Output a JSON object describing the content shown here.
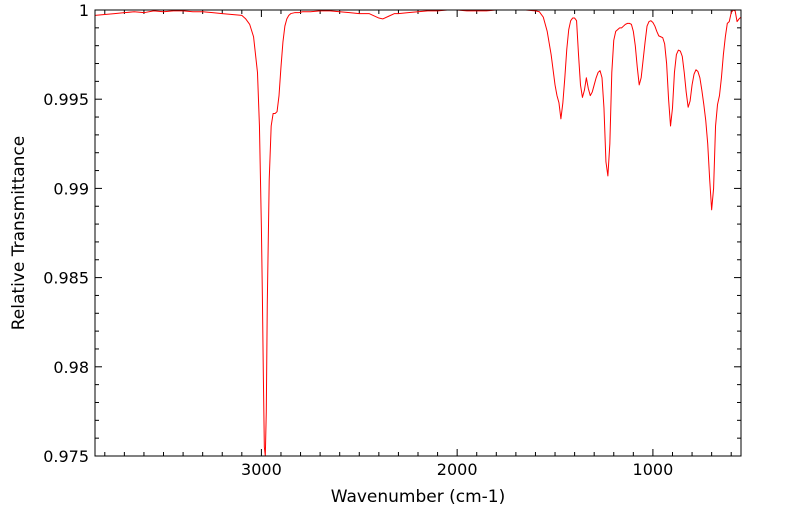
{
  "chart_data": {
    "type": "line",
    "title": "",
    "xlabel": "Wavenumber (cm-1)",
    "ylabel": "Relative Transmittance",
    "xlim": [
      3850,
      550
    ],
    "ylim": [
      0.975,
      1.0
    ],
    "x_reversed": true,
    "grid": false,
    "legend": "none",
    "x_ticks": [
      {
        "value": 3000,
        "label": "3000"
      },
      {
        "value": 2000,
        "label": "2000"
      },
      {
        "value": 1000,
        "label": "1000"
      }
    ],
    "y_ticks": [
      {
        "value": 1.0,
        "label": "1"
      },
      {
        "value": 0.995,
        "label": "0.995"
      },
      {
        "value": 0.99,
        "label": "0.99"
      },
      {
        "value": 0.985,
        "label": "0.985"
      },
      {
        "value": 0.98,
        "label": "0.98"
      },
      {
        "value": 0.975,
        "label": "0.975"
      }
    ],
    "series": [
      {
        "color": "#ff0000",
        "x": [
          3850,
          3800,
          3750,
          3700,
          3650,
          3600,
          3550,
          3500,
          3450,
          3400,
          3350,
          3300,
          3250,
          3200,
          3150,
          3100,
          3080,
          3060,
          3040,
          3020,
          3010,
          3000,
          2995,
          2990,
          2985,
          2980,
          2975,
          2970,
          2960,
          2950,
          2940,
          2930,
          2920,
          2910,
          2900,
          2890,
          2880,
          2870,
          2860,
          2850,
          2830,
          2810,
          2790,
          2770,
          2750,
          2700,
          2650,
          2600,
          2550,
          2500,
          2450,
          2400,
          2380,
          2350,
          2320,
          2300,
          2250,
          2200,
          2150,
          2100,
          2050,
          2000,
          1950,
          1900,
          1850,
          1800,
          1750,
          1700,
          1650,
          1600,
          1580,
          1560,
          1540,
          1520,
          1500,
          1490,
          1480,
          1470,
          1460,
          1450,
          1440,
          1430,
          1420,
          1410,
          1400,
          1390,
          1380,
          1370,
          1360,
          1350,
          1340,
          1330,
          1320,
          1310,
          1300,
          1290,
          1280,
          1270,
          1260,
          1250,
          1240,
          1230,
          1220,
          1210,
          1200,
          1190,
          1180,
          1170,
          1160,
          1150,
          1140,
          1130,
          1120,
          1110,
          1100,
          1090,
          1080,
          1070,
          1060,
          1050,
          1040,
          1030,
          1020,
          1010,
          1000,
          990,
          980,
          970,
          960,
          950,
          940,
          930,
          920,
          910,
          900,
          890,
          880,
          870,
          860,
          850,
          840,
          830,
          820,
          810,
          800,
          790,
          780,
          770,
          760,
          750,
          740,
          730,
          720,
          710,
          700,
          690,
          680,
          670,
          660,
          650,
          640,
          630,
          620,
          610,
          600,
          590,
          580,
          570,
          560,
          550
        ],
        "y": [
          0.9997,
          0.99975,
          0.9998,
          0.99985,
          0.9999,
          0.99985,
          0.99995,
          0.9999,
          0.99995,
          0.99995,
          0.9999,
          0.9999,
          0.99985,
          0.9998,
          0.99975,
          0.9997,
          0.9995,
          0.9992,
          0.9985,
          0.9965,
          0.9935,
          0.9878,
          0.984,
          0.9795,
          0.9755,
          0.975,
          0.9775,
          0.9835,
          0.9905,
          0.9935,
          0.9942,
          0.9942,
          0.9943,
          0.9952,
          0.9968,
          0.9982,
          0.9991,
          0.9995,
          0.9997,
          0.9998,
          0.99985,
          0.99985,
          0.9999,
          0.9999,
          0.9999,
          0.99995,
          0.99995,
          0.9999,
          0.99985,
          0.9998,
          0.9998,
          0.99955,
          0.9995,
          0.99965,
          0.9998,
          0.9998,
          0.99985,
          0.9999,
          0.99995,
          0.99995,
          1.0,
          1.0,
          0.99995,
          0.99995,
          0.99995,
          1.0,
          1.0,
          1.0,
          1.0,
          0.99995,
          0.9999,
          0.9996,
          0.9988,
          0.9975,
          0.9958,
          0.9952,
          0.9948,
          0.9939,
          0.9948,
          0.9962,
          0.9978,
          0.9989,
          0.9994,
          0.99955,
          0.99955,
          0.9994,
          0.9975,
          0.9958,
          0.9951,
          0.9955,
          0.9962,
          0.9956,
          0.9952,
          0.9954,
          0.9958,
          0.9962,
          0.9965,
          0.9966,
          0.9962,
          0.9945,
          0.9915,
          0.9907,
          0.9925,
          0.9965,
          0.9983,
          0.9988,
          0.9989,
          0.999,
          0.999,
          0.9991,
          0.9992,
          0.99925,
          0.99925,
          0.9992,
          0.9988,
          0.998,
          0.9968,
          0.9958,
          0.9962,
          0.9972,
          0.9982,
          0.9991,
          0.99935,
          0.9994,
          0.9993,
          0.9991,
          0.9988,
          0.99855,
          0.9985,
          0.99845,
          0.9981,
          0.997,
          0.995,
          0.9935,
          0.9945,
          0.9965,
          0.9975,
          0.99775,
          0.9977,
          0.9974,
          0.9965,
          0.9954,
          0.99455,
          0.9949,
          0.9958,
          0.9964,
          0.99665,
          0.99655,
          0.9962,
          0.9955,
          0.9947,
          0.9938,
          0.9925,
          0.9905,
          0.9888,
          0.99,
          0.9935,
          0.9947,
          0.9952,
          0.9962,
          0.9975,
          0.9985,
          0.99925,
          0.99935,
          0.99985,
          1.0,
          0.99995,
          0.99935,
          0.9995,
          0.9996
        ]
      }
    ]
  }
}
